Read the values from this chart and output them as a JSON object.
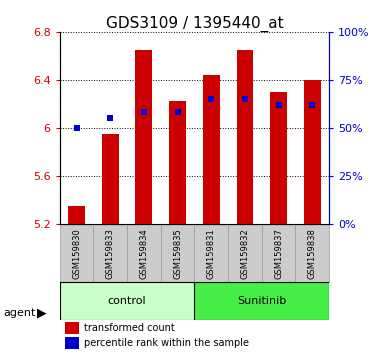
{
  "title": "GDS3109 / 1395440_at",
  "samples": [
    "GSM159830",
    "GSM159833",
    "GSM159834",
    "GSM159835",
    "GSM159831",
    "GSM159832",
    "GSM159837",
    "GSM159838"
  ],
  "red_values": [
    5.35,
    5.95,
    6.65,
    6.22,
    6.44,
    6.65,
    6.3,
    6.4
  ],
  "blue_values": [
    50,
    55,
    58,
    58,
    65,
    65,
    62,
    62
  ],
  "groups": [
    {
      "label": "control",
      "start": 0,
      "end": 4,
      "color": "#c8ffc8"
    },
    {
      "label": "Sunitinib",
      "start": 4,
      "end": 8,
      "color": "#44ee44"
    }
  ],
  "ylim_left": [
    5.2,
    6.8
  ],
  "ylim_right": [
    0,
    100
  ],
  "yticks_left": [
    5.2,
    5.6,
    6.0,
    6.4,
    6.8
  ],
  "ytick_labels_left": [
    "5.2",
    "5.6",
    "6",
    "6.4",
    "6.8"
  ],
  "yticks_right": [
    0,
    25,
    50,
    75,
    100
  ],
  "ytick_labels_right": [
    "0%",
    "25%",
    "50%",
    "75%",
    "100%"
  ],
  "bar_color": "#cc0000",
  "dot_color": "#0000cc",
  "bar_width": 0.5,
  "bg_labels": "#cccccc",
  "bg_plot": "#ffffff",
  "grid_color": "#000000",
  "title_fontsize": 11,
  "tick_fontsize": 8,
  "agent_label": "agent",
  "legend_red": "transformed count",
  "legend_blue": "percentile rank within the sample",
  "legend_fontsize": 7
}
